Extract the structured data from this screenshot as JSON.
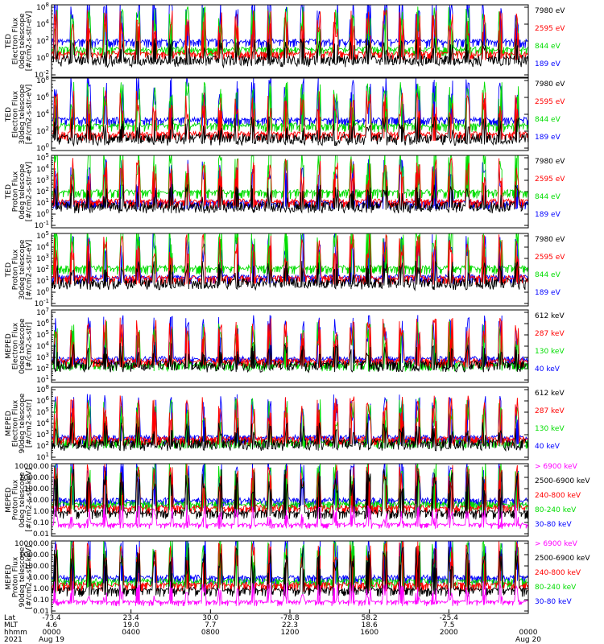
{
  "chart_data": {
    "type": "line",
    "panels": [
      {
        "ylabel_lines": [
          "TED",
          "Electron Flux",
          "0deg telescope",
          "[#/cm2-s-str-eV]"
        ],
        "yticks": [
          "10^8",
          "10^4",
          "10^2",
          "10^0",
          "10^-2"
        ],
        "series": [
          {
            "name": "7980 eV",
            "color": "#000000"
          },
          {
            "name": "2595 eV",
            "color": "#ff0000"
          },
          {
            "name": "844 eV",
            "color": "#00dd00"
          },
          {
            "name": "189 eV",
            "color": "#0000ff"
          }
        ]
      },
      {
        "ylabel_lines": [
          "TED",
          "Electron Flux",
          "30deg telescope",
          "[#/cm2-s-str-eV]"
        ],
        "yticks": [
          "10^8",
          "10^6",
          "10^4",
          "10^2",
          "10^0"
        ],
        "series": [
          {
            "name": "7980 eV",
            "color": "#000000"
          },
          {
            "name": "2595 eV",
            "color": "#ff0000"
          },
          {
            "name": "844 eV",
            "color": "#00dd00"
          },
          {
            "name": "189 eV",
            "color": "#0000ff"
          }
        ]
      },
      {
        "ylabel_lines": [
          "TED",
          "Proton Flux",
          "0deg telescope",
          "[#/cm2-s-str-eV]"
        ],
        "yticks": [
          "10^5",
          "10^4",
          "10^3",
          "10^2",
          "10^1",
          "10^0",
          "10^-1"
        ],
        "series": [
          {
            "name": "7980 eV",
            "color": "#000000"
          },
          {
            "name": "2595 eV",
            "color": "#ff0000"
          },
          {
            "name": "844 eV",
            "color": "#00dd00"
          },
          {
            "name": "189 eV",
            "color": "#0000ff"
          }
        ]
      },
      {
        "ylabel_lines": [
          "TED",
          "Proton Flux",
          "30deg telescope",
          "[#/cm2-s-str-eV]"
        ],
        "yticks": [
          "10^5",
          "10^4",
          "10^3",
          "10^2",
          "10^1",
          "10^0",
          "10^-1"
        ],
        "series": [
          {
            "name": "7980 eV",
            "color": "#000000"
          },
          {
            "name": "2595 eV",
            "color": "#ff0000"
          },
          {
            "name": "844 eV",
            "color": "#00dd00"
          },
          {
            "name": "189 eV",
            "color": "#0000ff"
          }
        ]
      },
      {
        "ylabel_lines": [
          "MEPED",
          "Electron Flux",
          "0deg telescope",
          "[#/cm2-s-str]"
        ],
        "yticks": [
          "10^7",
          "10^6",
          "10^5",
          "10^4",
          "10^3",
          "10^2",
          "10^1"
        ],
        "series": [
          {
            "name": "612 keV",
            "color": "#000000"
          },
          {
            "name": "287 keV",
            "color": "#ff0000"
          },
          {
            "name": "130 keV",
            "color": "#00dd00"
          },
          {
            "name": "40 keV",
            "color": "#0000ff"
          }
        ]
      },
      {
        "ylabel_lines": [
          "MEPED",
          "Electron Flux",
          "90deg telescope",
          "[#/cm2-s-str]"
        ],
        "yticks": [
          "10^8",
          "10^6",
          "10^5",
          "10^4",
          "10^3",
          "10^2",
          "10^1"
        ],
        "series": [
          {
            "name": "612 keV",
            "color": "#000000"
          },
          {
            "name": "287 keV",
            "color": "#ff0000"
          },
          {
            "name": "130 keV",
            "color": "#00dd00"
          },
          {
            "name": "40 keV",
            "color": "#0000ff"
          }
        ]
      },
      {
        "ylabel_lines": [
          "MEPED",
          "Proton Flux",
          "0deg telescope",
          "[#/cm2-s-str-keV]"
        ],
        "yticks": [
          "10000.00",
          "1000.00",
          "100.00",
          "10.00",
          "1.00",
          "0.10",
          "0.01"
        ],
        "series": [
          {
            "name": "> 6900 keV",
            "color": "#ff00ff"
          },
          {
            "name": "2500-6900 keV",
            "color": "#000000"
          },
          {
            "name": "240-800 keV",
            "color": "#ff0000"
          },
          {
            "name": "80-240 keV",
            "color": "#00dd00"
          },
          {
            "name": "30-80 keV",
            "color": "#0000ff"
          }
        ]
      },
      {
        "ylabel_lines": [
          "MEPED",
          "Proton Flux",
          "90deg telescope",
          "[#/cm2-s-str-keV]"
        ],
        "yticks": [
          "10000.00",
          "1000.00",
          "100.00",
          "10.00",
          "1.00",
          "0.10",
          "0.01"
        ],
        "series": [
          {
            "name": "> 6900 keV",
            "color": "#ff00ff"
          },
          {
            "name": "2500-6900 keV",
            "color": "#000000"
          },
          {
            "name": "240-800 keV",
            "color": "#ff0000"
          },
          {
            "name": "80-240 keV",
            "color": "#00dd00"
          },
          {
            "name": "30-80 keV",
            "color": "#0000ff"
          }
        ]
      }
    ],
    "x_axis": {
      "row_labels": [
        "Lat",
        "MLT",
        "hhmm",
        "2021"
      ],
      "ticks": [
        {
          "lat": "-73.4",
          "mlt": "4.6",
          "hhmm": "0000",
          "date": "Aug 19"
        },
        {
          "lat": "23.4",
          "mlt": "19.0",
          "hhmm": "0400",
          "date": ""
        },
        {
          "lat": "30.0",
          "mlt": "7.7",
          "hhmm": "0800",
          "date": ""
        },
        {
          "lat": "-78.8",
          "mlt": "22.3",
          "hhmm": "1200",
          "date": ""
        },
        {
          "lat": "58.2",
          "mlt": "18.6",
          "hhmm": "1600",
          "date": ""
        },
        {
          "lat": "-25.4",
          "mlt": "7.5",
          "hhmm": "2000",
          "date": ""
        },
        {
          "lat": "",
          "mlt": "",
          "hhmm": "0000",
          "date": "Aug 20"
        }
      ]
    }
  }
}
